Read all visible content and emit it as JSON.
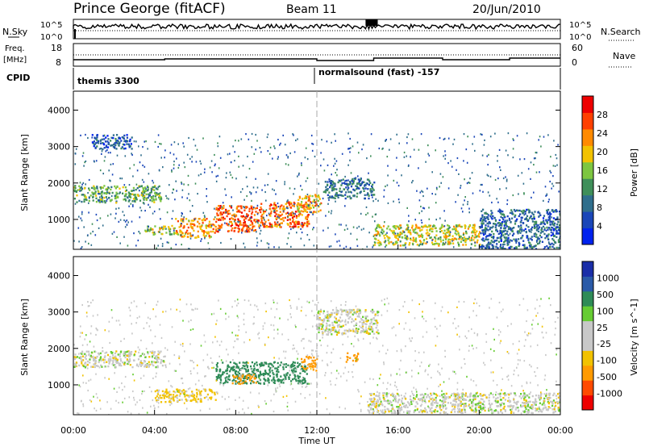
{
  "header": {
    "station": "Prince George (fitACF)",
    "beam": "Beam 11",
    "date": "20/Jun/2010"
  },
  "strip_panels": {
    "nsky": {
      "label": "N.Sky",
      "ticks": [
        "10^5",
        "10^0"
      ],
      "right_ticks": [
        "10^5",
        "10^0"
      ],
      "right_label": "N.Search",
      "right_line_style": "dotted"
    },
    "freq": {
      "label_line1": "Freq.",
      "label_line2": "[MHz]",
      "ticks": [
        "18",
        "8"
      ],
      "right_ticks": [
        "60",
        "0"
      ],
      "right_label": "Nave",
      "right_line_style": "dotted"
    },
    "cpid": {
      "label": "CPID",
      "programs": [
        {
          "name": "themis 3300",
          "start": "00:00"
        },
        {
          "name": "normalsound (fast) -157",
          "start": "12:00"
        }
      ]
    }
  },
  "colors": {
    "power_scale": [
      "#0022ee",
      "#1a46b8",
      "#2f6e8c",
      "#3f8f5a",
      "#7dc640",
      "#f2c200",
      "#ff8a00",
      "#ff4000",
      "#ee0000"
    ],
    "velocity_scale": [
      "#ee0000",
      "#ff4a00",
      "#ff9a00",
      "#f2c200",
      "#c8c8c8",
      "#c8c8c8",
      "#66cc33",
      "#2e8b57",
      "#2a5aa8",
      "#1a2ea8"
    ],
    "marker_line": "#aaaaaa"
  },
  "chart_data": [
    {
      "type": "heatmap",
      "title": "Power",
      "ylabel": "Slant Range [km]",
      "ylim": [
        180,
        4520
      ],
      "y_ticks": [
        "1000",
        "2000",
        "3000",
        "4000"
      ],
      "colorbar": {
        "label": "Power [dB]",
        "ticks": [
          "28",
          "24",
          "20",
          "16",
          "12",
          "8",
          "4"
        ],
        "range": [
          0,
          32
        ]
      },
      "regions": [
        {
          "t0": 0.0,
          "t1": 4.3,
          "r0": 1480,
          "r1": 1950,
          "value": 14
        },
        {
          "t0": 0.9,
          "t1": 2.9,
          "r0": 2950,
          "r1": 3350,
          "value": 7
        },
        {
          "t0": 3.5,
          "t1": 5.0,
          "r0": 600,
          "r1": 850,
          "value": 17
        },
        {
          "t0": 5.0,
          "t1": 7.0,
          "r0": 520,
          "r1": 1050,
          "value": 22
        },
        {
          "t0": 7.0,
          "t1": 9.0,
          "r0": 680,
          "r1": 1400,
          "value": 26
        },
        {
          "t0": 9.0,
          "t1": 11.6,
          "r0": 800,
          "r1": 1500,
          "value": 25
        },
        {
          "t0": 11.0,
          "t1": 12.2,
          "r0": 1200,
          "r1": 1700,
          "value": 21
        },
        {
          "t0": 12.3,
          "t1": 14.8,
          "r0": 1600,
          "r1": 2150,
          "value": 9
        },
        {
          "t0": 14.8,
          "t1": 20.0,
          "r0": 300,
          "r1": 880,
          "value": 18
        },
        {
          "t0": 20.0,
          "t1": 24.0,
          "r0": 200,
          "r1": 1300,
          "value": 8
        }
      ]
    },
    {
      "type": "heatmap",
      "title": "Velocity",
      "xlabel": "Time UT",
      "ylabel": "Slant Range [km]",
      "ylim": [
        180,
        4520
      ],
      "x_ticks": [
        "00:00",
        "04:00",
        "08:00",
        "12:00",
        "16:00",
        "20:00",
        "00:00"
      ],
      "y_ticks": [
        "1000",
        "2000",
        "3000",
        "4000"
      ],
      "colorbar": {
        "label": "Velocity [m s^-1]",
        "ticks": [
          "1000",
          "500",
          "100",
          "25",
          "-25",
          "-100",
          "-500",
          "-1000"
        ]
      },
      "regions": [
        {
          "t0": 0.0,
          "t1": 4.5,
          "r0": 1500,
          "r1": 1950,
          "value": 0
        },
        {
          "t0": 4.0,
          "t1": 7.0,
          "r0": 550,
          "r1": 900,
          "value": -50
        },
        {
          "t0": 7.0,
          "t1": 11.5,
          "r0": 1050,
          "r1": 1650,
          "value": 150
        },
        {
          "t0": 7.8,
          "t1": 9.0,
          "r0": 1050,
          "r1": 1300,
          "value": -300
        },
        {
          "t0": 11.2,
          "t1": 12.0,
          "r0": 1400,
          "r1": 1800,
          "value": -200
        },
        {
          "t0": 13.4,
          "t1": 14.0,
          "r0": 1650,
          "r1": 1900,
          "value": -200
        },
        {
          "t0": 14.5,
          "t1": 24.0,
          "r0": 250,
          "r1": 800,
          "value": 0
        },
        {
          "t0": 12.0,
          "t1": 15.0,
          "r0": 2400,
          "r1": 3100,
          "value": 0
        }
      ]
    }
  ]
}
